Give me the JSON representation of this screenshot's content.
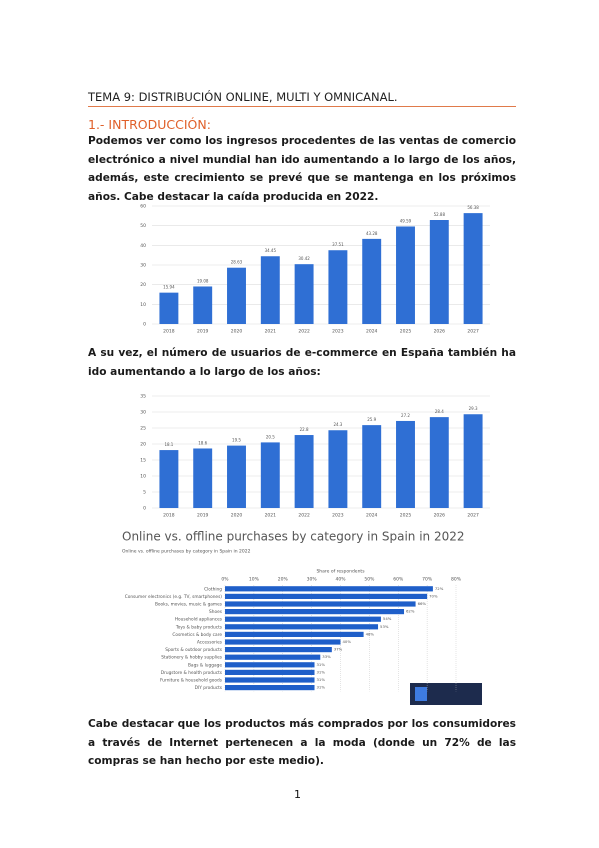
{
  "header": {
    "title": "TEMA 9: DISTRIBUCIÓN ONLINE, MULTI Y OMNICANAL."
  },
  "section": {
    "heading": "1.- INTRODUCCIÓN:",
    "paragraphs": [
      "Podemos ver como los ingresos procedentes de las ventas de comercio electrónico a nivel mundial han ido aumentando a lo largo de los años, además, este crecimiento se prevé que se mantenga en los próximos años. Cabe destacar la caída producida en 2022.",
      "A su vez, el número de usuarios de e-commerce en España también ha ido aumentando a lo largo de los años:",
      "Cabe destacar que los productos más comprados por los consumidores a través de Internet pertenecen a la moda (donde un 72% de las compras se han hecho por este medio)."
    ]
  },
  "charts": [
    {
      "type": "bar",
      "categories": [
        "2018",
        "2019",
        "2020",
        "2021",
        "2022",
        "2023",
        "2024",
        "2025",
        "2026",
        "2027"
      ],
      "values": [
        15.94,
        19.08,
        28.63,
        34.45,
        30.42,
        37.51,
        43.28,
        49.59,
        52.88,
        56.38
      ],
      "color": "#2f6fd4",
      "ylim": [
        0,
        60
      ],
      "yticks": [
        0,
        10,
        20,
        30,
        40,
        50,
        60
      ],
      "grid": true
    },
    {
      "type": "bar",
      "categories": [
        "2018",
        "2019",
        "2020",
        "2021",
        "2022",
        "2023",
        "2024",
        "2025",
        "2026",
        "2027"
      ],
      "values": [
        18.1,
        18.6,
        19.5,
        20.5,
        22.8,
        24.3,
        25.9,
        27.2,
        28.4,
        29.3
      ],
      "color": "#2f6fd4",
      "ylim": [
        0,
        35
      ],
      "yticks": [
        0,
        5,
        10,
        15,
        20,
        25,
        30,
        35
      ],
      "grid": true
    },
    {
      "type": "hbar",
      "title": "Online vs. offline purchases by category in Spain in 2022",
      "subtitle": "Online vs. offline purchases by category in Spain in 2022",
      "xlabel": "Share of respondents",
      "categories": [
        "Clothing",
        "Consumer electronics (e.g. TV, smartphones)",
        "Books, movies, music & games",
        "Shoes",
        "Household appliances",
        "Toys & baby products",
        "Cosmetics & body care",
        "Accessories",
        "Sports & outdoor products",
        "Stationery & hobby supplies",
        "Bags & luggage",
        "Drugstore & health products",
        "Furniture & household goods",
        "DIY products"
      ],
      "values": [
        72,
        70,
        66,
        62,
        54,
        53,
        48,
        40,
        37,
        33,
        31,
        31,
        31,
        31
      ],
      "value_labels": [
        "72%",
        "70%",
        "66%",
        "62%",
        "54%",
        "53%",
        "48%",
        "40%",
        "37%",
        "33%",
        "31%",
        "31%",
        "31%",
        "31%"
      ],
      "color": "#1f5fc9",
      "xlim": [
        0,
        80
      ],
      "xticks": [
        {
          "value": 0,
          "label": "0%"
        },
        {
          "value": 10,
          "label": "10%"
        },
        {
          "value": 20,
          "label": "20%"
        },
        {
          "value": 30,
          "label": "30%"
        },
        {
          "value": 40,
          "label": "40%"
        },
        {
          "value": 50,
          "label": "50%"
        },
        {
          "value": 60,
          "label": "60%"
        },
        {
          "value": 70,
          "label": "70%"
        },
        {
          "value": 80,
          "label": "80%"
        }
      ],
      "grid": true
    }
  ],
  "footer": {
    "page_number": "1"
  }
}
